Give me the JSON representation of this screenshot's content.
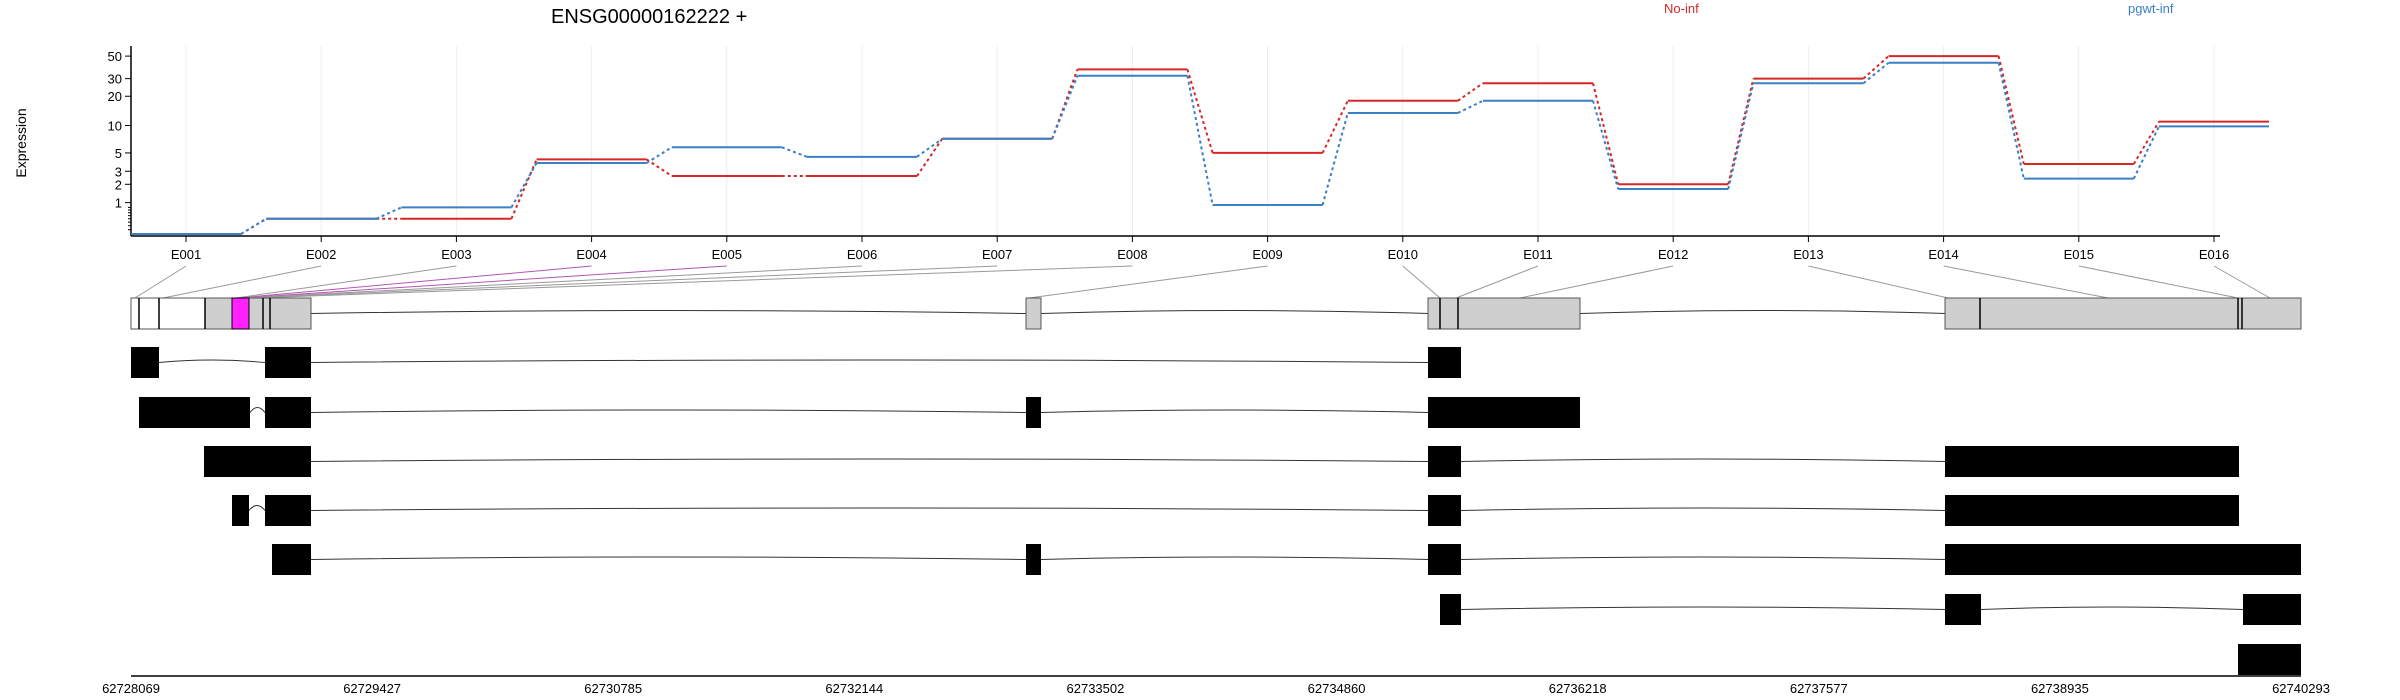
{
  "chart_data": {
    "type": "line",
    "title": "ENSG00000162222 +",
    "ylabel": "Expression",
    "xlabel": "",
    "y_scale": "log-like (log(1+x))",
    "y_ticks": [
      1,
      2,
      3,
      5,
      10,
      20,
      30,
      50
    ],
    "ylim": [
      0,
      60
    ],
    "categories": [
      "E001",
      "E002",
      "E003",
      "E004",
      "E005",
      "E006",
      "E007",
      "E008",
      "E009",
      "E010",
      "E011",
      "E012",
      "E013",
      "E014",
      "E015",
      "E016"
    ],
    "series": [
      {
        "name": "No-inf",
        "color": "#d62728",
        "values": [
          0,
          0.4,
          0.4,
          4.2,
          2.6,
          2.6,
          7.2,
          37,
          5,
          18,
          27,
          2,
          30,
          50,
          3.7,
          11
        ]
      },
      {
        "name": "pgwt-inf",
        "color": "#3b7fc4",
        "values": [
          0,
          0.4,
          0.8,
          3.8,
          5.8,
          4.5,
          7.2,
          32,
          0.9,
          13.5,
          18,
          1.7,
          27,
          43,
          2.4,
          9.8
        ]
      }
    ],
    "legend_placement": "top",
    "gene_model": {
      "genomic_coordinates": [
        "62728069",
        "62729427",
        "62730785",
        "62732144",
        "62733502",
        "62734860",
        "62736218",
        "62737577",
        "62738935",
        "62740293"
      ],
      "transcript_count": 7
    }
  }
}
